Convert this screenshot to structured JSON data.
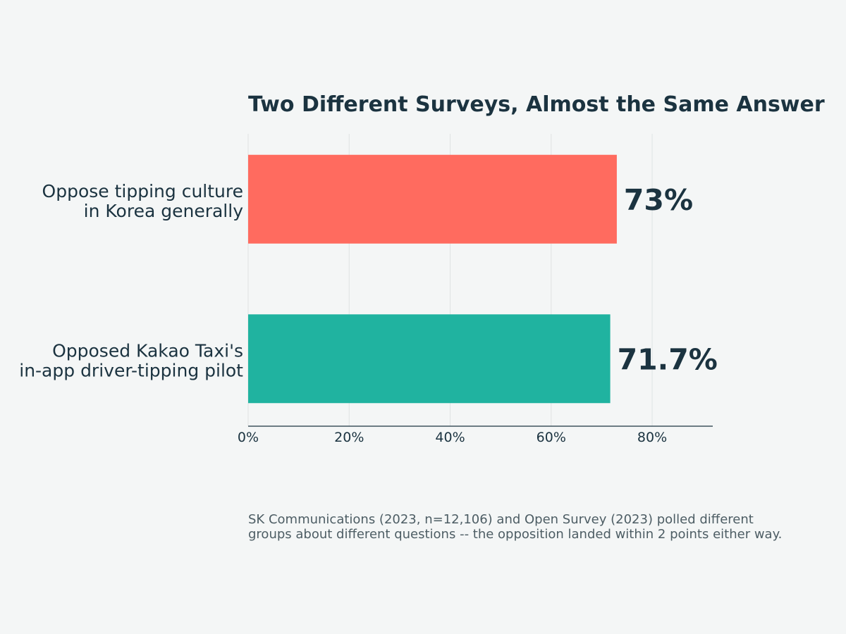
{
  "chart_data": {
    "type": "bar",
    "orientation": "horizontal",
    "title": "Two Different Surveys, Almost the Same Answer",
    "xlabel": "",
    "ylabel": "",
    "xlim": [
      0,
      92
    ],
    "grid": true,
    "ticks": [
      {
        "value": 0,
        "label": "0%"
      },
      {
        "value": 20,
        "label": "20%"
      },
      {
        "value": 40,
        "label": "40%"
      },
      {
        "value": 60,
        "label": "60%"
      },
      {
        "value": 80,
        "label": "80%"
      }
    ],
    "bars": [
      {
        "label_lines": [
          "Oppose tipping culture",
          "in Korea generally"
        ],
        "value": 73,
        "value_label": "73%",
        "color": "#ff6b5f"
      },
      {
        "label_lines": [
          "Opposed Kakao Taxi's",
          "in-app driver-tipping pilot"
        ],
        "value": 71.7,
        "value_label": "71.7%",
        "color": "#20b3a0"
      }
    ],
    "caption_lines": [
      "SK Communications (2023, n=12,106) and Open Survey (2023) polled different",
      "groups about different questions -- the opposition landed within 2 points either way."
    ]
  }
}
